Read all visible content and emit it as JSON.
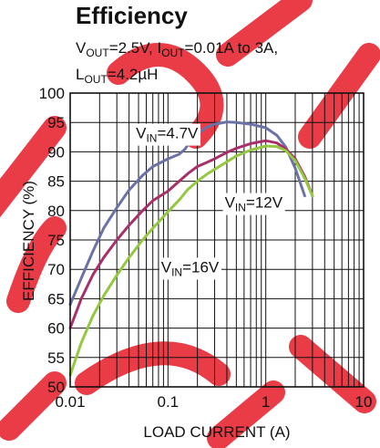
{
  "chart_data": {
    "type": "line",
    "title": "Efficiency",
    "subtitle": {
      "line1": [
        {
          "t": "V",
          "sub": false
        },
        {
          "t": "OUT",
          "sub": true
        },
        {
          "t": "=2.5V, I",
          "sub": false
        },
        {
          "t": "OUT",
          "sub": true
        },
        {
          "t": "=0.01A to 3A,",
          "sub": false
        }
      ],
      "line2": [
        {
          "t": "L",
          "sub": false
        },
        {
          "t": "OUT",
          "sub": true
        },
        {
          "t": "=4.2µH",
          "sub": false
        }
      ]
    },
    "xlabel": "LOAD CURRENT (A)",
    "ylabel": "EFFICIENCY (%)",
    "xscale": "log",
    "xlim": [
      0.01,
      10
    ],
    "ylim": [
      50,
      100
    ],
    "xticks": [
      0.01,
      0.1,
      1,
      10
    ],
    "xtick_labels": [
      "0.01",
      "0.1",
      "1",
      "10"
    ],
    "yticks": [
      50,
      55,
      60,
      65,
      70,
      75,
      80,
      85,
      90,
      95,
      100
    ],
    "ytick_labels": [
      "50",
      "55",
      "60",
      "65",
      "70",
      "75",
      "80",
      "85",
      "90",
      "95",
      "100"
    ],
    "grid": true,
    "series": [
      {
        "name": "VIN=4.7V",
        "label_parts": [
          {
            "t": "V",
            "sub": false
          },
          {
            "t": "IN",
            "sub": true
          },
          {
            "t": "=4.7V",
            "sub": false
          }
        ],
        "color": "#6a72a8",
        "x": [
          0.01,
          0.013,
          0.017,
          0.022,
          0.03,
          0.04,
          0.055,
          0.07,
          0.1,
          0.13,
          0.15,
          0.16,
          0.18,
          0.2,
          0.25,
          0.3,
          0.4,
          0.5,
          0.7,
          1.0,
          1.3,
          1.6,
          2.0,
          2.5
        ],
        "y": [
          64,
          68.5,
          73,
          77,
          80.5,
          83.5,
          86,
          87.5,
          88.8,
          89.6,
          90.5,
          91.2,
          92.4,
          93.1,
          94.2,
          94.7,
          95.1,
          95.0,
          94.7,
          94.1,
          92.8,
          90.8,
          87.2,
          82.5
        ]
      },
      {
        "name": "VIN=12V",
        "label_parts": [
          {
            "t": "V",
            "sub": false
          },
          {
            "t": "IN",
            "sub": true
          },
          {
            "t": "=12V",
            "sub": false
          }
        ],
        "color": "#a8306a",
        "x": [
          0.01,
          0.013,
          0.017,
          0.022,
          0.03,
          0.04,
          0.055,
          0.07,
          0.1,
          0.13,
          0.16,
          0.2,
          0.25,
          0.3,
          0.4,
          0.5,
          0.7,
          1.0,
          1.3,
          1.6,
          2.0,
          2.5,
          3.0
        ],
        "y": [
          60,
          65,
          69,
          72,
          75,
          77.5,
          80,
          81.7,
          83.3,
          85,
          86.3,
          87.5,
          88.2,
          88.8,
          89.9,
          90.6,
          91.4,
          91.9,
          91.5,
          90.5,
          88.8,
          85.8,
          82.5
        ]
      },
      {
        "name": "VIN=16V",
        "label_parts": [
          {
            "t": "V",
            "sub": false
          },
          {
            "t": "IN",
            "sub": true
          },
          {
            "t": "=16V",
            "sub": false
          }
        ],
        "color": "#93c840",
        "x": [
          0.01,
          0.013,
          0.017,
          0.022,
          0.03,
          0.04,
          0.055,
          0.07,
          0.1,
          0.13,
          0.16,
          0.2,
          0.25,
          0.3,
          0.4,
          0.5,
          0.7,
          1.0,
          1.3,
          1.6,
          2.0,
          2.5,
          3.0
        ],
        "y": [
          52,
          57.5,
          62,
          65.5,
          69,
          72,
          75,
          77,
          79.8,
          81.8,
          83.6,
          85,
          86.2,
          87,
          88.3,
          89.3,
          90.3,
          91.0,
          90.9,
          90.2,
          88.5,
          85.5,
          82.5
        ]
      }
    ]
  },
  "watermark_color": "#e8323c"
}
